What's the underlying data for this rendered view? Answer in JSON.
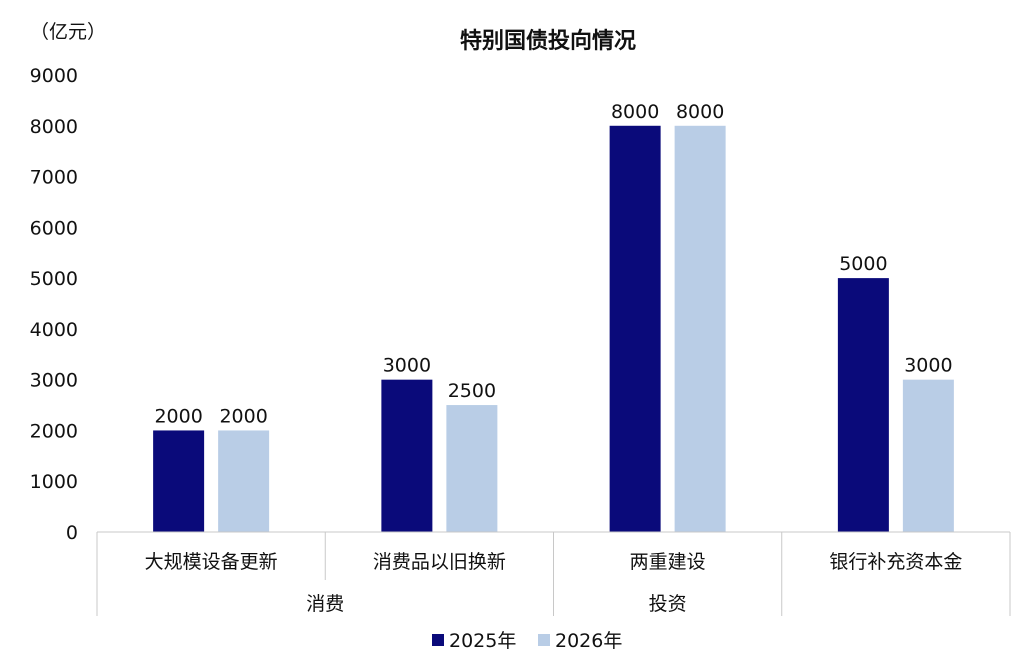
{
  "chart_data": {
    "type": "bar",
    "title": "特别国债投向情况",
    "ylabel": "（亿元）",
    "ylim": [
      0,
      9000
    ],
    "yticks": [
      0,
      1000,
      2000,
      3000,
      4000,
      5000,
      6000,
      7000,
      8000,
      9000
    ],
    "categories": [
      "大规模设备更新",
      "消费品以旧换新",
      "两重建设",
      "银行补充资本金"
    ],
    "groups": [
      {
        "label": "消费",
        "categories": [
          "大规模设备更新",
          "消费品以旧换新"
        ]
      },
      {
        "label": "投资",
        "categories": [
          "两重建设"
        ]
      },
      {
        "label": "",
        "categories": [
          "银行补充资本金"
        ]
      }
    ],
    "series": [
      {
        "name": "2025年",
        "color": "#0a0a7a",
        "values": [
          2000,
          3000,
          8000,
          5000
        ]
      },
      {
        "name": "2026年",
        "color": "#b9cde6",
        "values": [
          2000,
          2500,
          8000,
          3000
        ]
      }
    ],
    "grid": false,
    "legend_position": "bottom-center"
  }
}
